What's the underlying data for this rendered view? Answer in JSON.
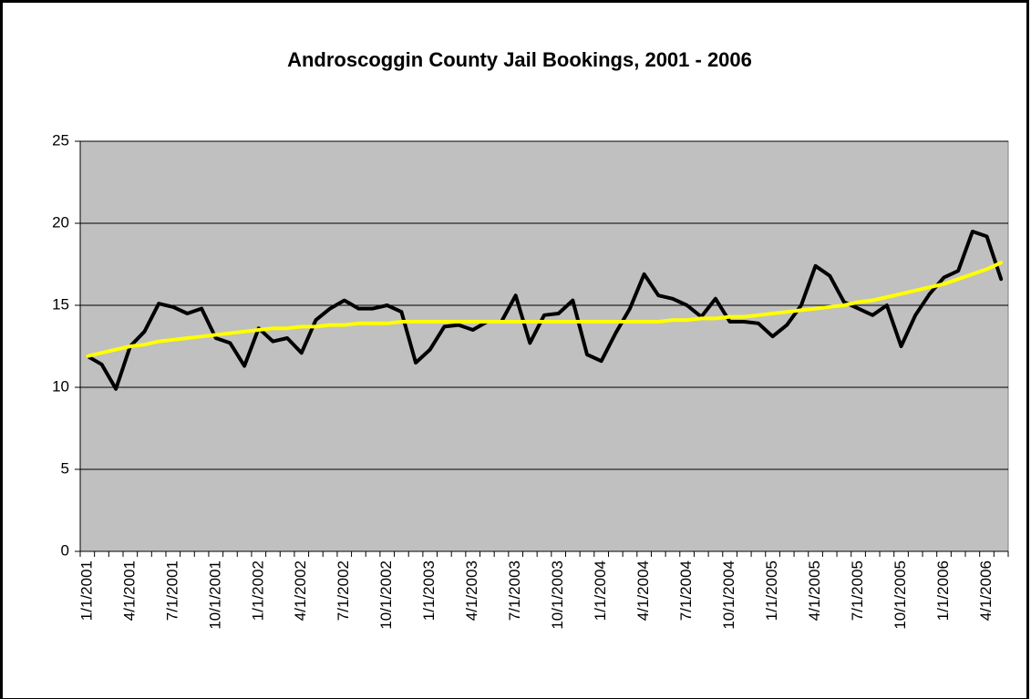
{
  "chart_data": {
    "type": "line",
    "title": "Androscoggin County Jail Bookings, 2001 - 2006",
    "categories": [
      "1/1/2001",
      null,
      null,
      "4/1/2001",
      null,
      null,
      "7/1/2001",
      null,
      null,
      "10/1/2001",
      null,
      null,
      "1/1/2002",
      null,
      null,
      "4/1/2002",
      null,
      null,
      "7/1/2002",
      null,
      null,
      "10/1/2002",
      null,
      null,
      "1/1/2003",
      null,
      null,
      "4/1/2003",
      null,
      null,
      "7/1/2003",
      null,
      null,
      "10/1/2003",
      null,
      null,
      "1/1/2004",
      null,
      null,
      "4/1/2004",
      null,
      null,
      "7/1/2004",
      null,
      null,
      "10/1/2004",
      null,
      null,
      "1/1/2005",
      null,
      null,
      "4/1/2005",
      null,
      null,
      "7/1/2005",
      null,
      null,
      "10/1/2005",
      null,
      null,
      "1/1/2006",
      null,
      null,
      "4/1/2006",
      null
    ],
    "series": [
      {
        "color": "#000000",
        "values": [
          11.9,
          11.4,
          9.9,
          12.5,
          13.4,
          15.1,
          14.9,
          14.5,
          14.8,
          13.0,
          12.7,
          11.3,
          13.6,
          12.8,
          13.0,
          12.1,
          14.1,
          14.8,
          15.3,
          14.8,
          14.8,
          15.0,
          14.6,
          11.5,
          12.3,
          13.7,
          13.8,
          13.5,
          14.0,
          14.0,
          15.6,
          12.7,
          14.4,
          14.5,
          15.3,
          12.0,
          11.6,
          13.3,
          14.8,
          16.9,
          15.6,
          15.4,
          15.0,
          14.3,
          15.4,
          14.0,
          14.0,
          13.9,
          13.1,
          13.8,
          15.0,
          17.4,
          16.8,
          15.2,
          14.8,
          14.4,
          15.0,
          12.5,
          14.4,
          15.7,
          16.7,
          17.1,
          19.5,
          19.2,
          16.6
        ]
      },
      {
        "color": "#ffff00",
        "values": [
          11.9,
          12.1,
          12.3,
          12.5,
          12.6,
          12.8,
          12.9,
          13.0,
          13.1,
          13.2,
          13.3,
          13.4,
          13.5,
          13.6,
          13.6,
          13.7,
          13.7,
          13.8,
          13.8,
          13.9,
          13.9,
          13.9,
          14.0,
          14.0,
          14.0,
          14.0,
          14.0,
          14.0,
          14.0,
          14.0,
          14.0,
          14.0,
          14.0,
          14.0,
          14.0,
          14.0,
          14.0,
          14.0,
          14.0,
          14.0,
          14.0,
          14.1,
          14.1,
          14.2,
          14.2,
          14.3,
          14.3,
          14.4,
          14.5,
          14.6,
          14.7,
          14.8,
          14.9,
          15.0,
          15.2,
          15.3,
          15.5,
          15.7,
          15.9,
          16.1,
          16.3,
          16.6,
          16.9,
          17.2,
          17.6
        ]
      }
    ],
    "ylim": [
      0,
      25
    ],
    "yticks": [
      0,
      5,
      10,
      15,
      20,
      25
    ],
    "grid": true,
    "plot_background": "#c0c0c0"
  }
}
